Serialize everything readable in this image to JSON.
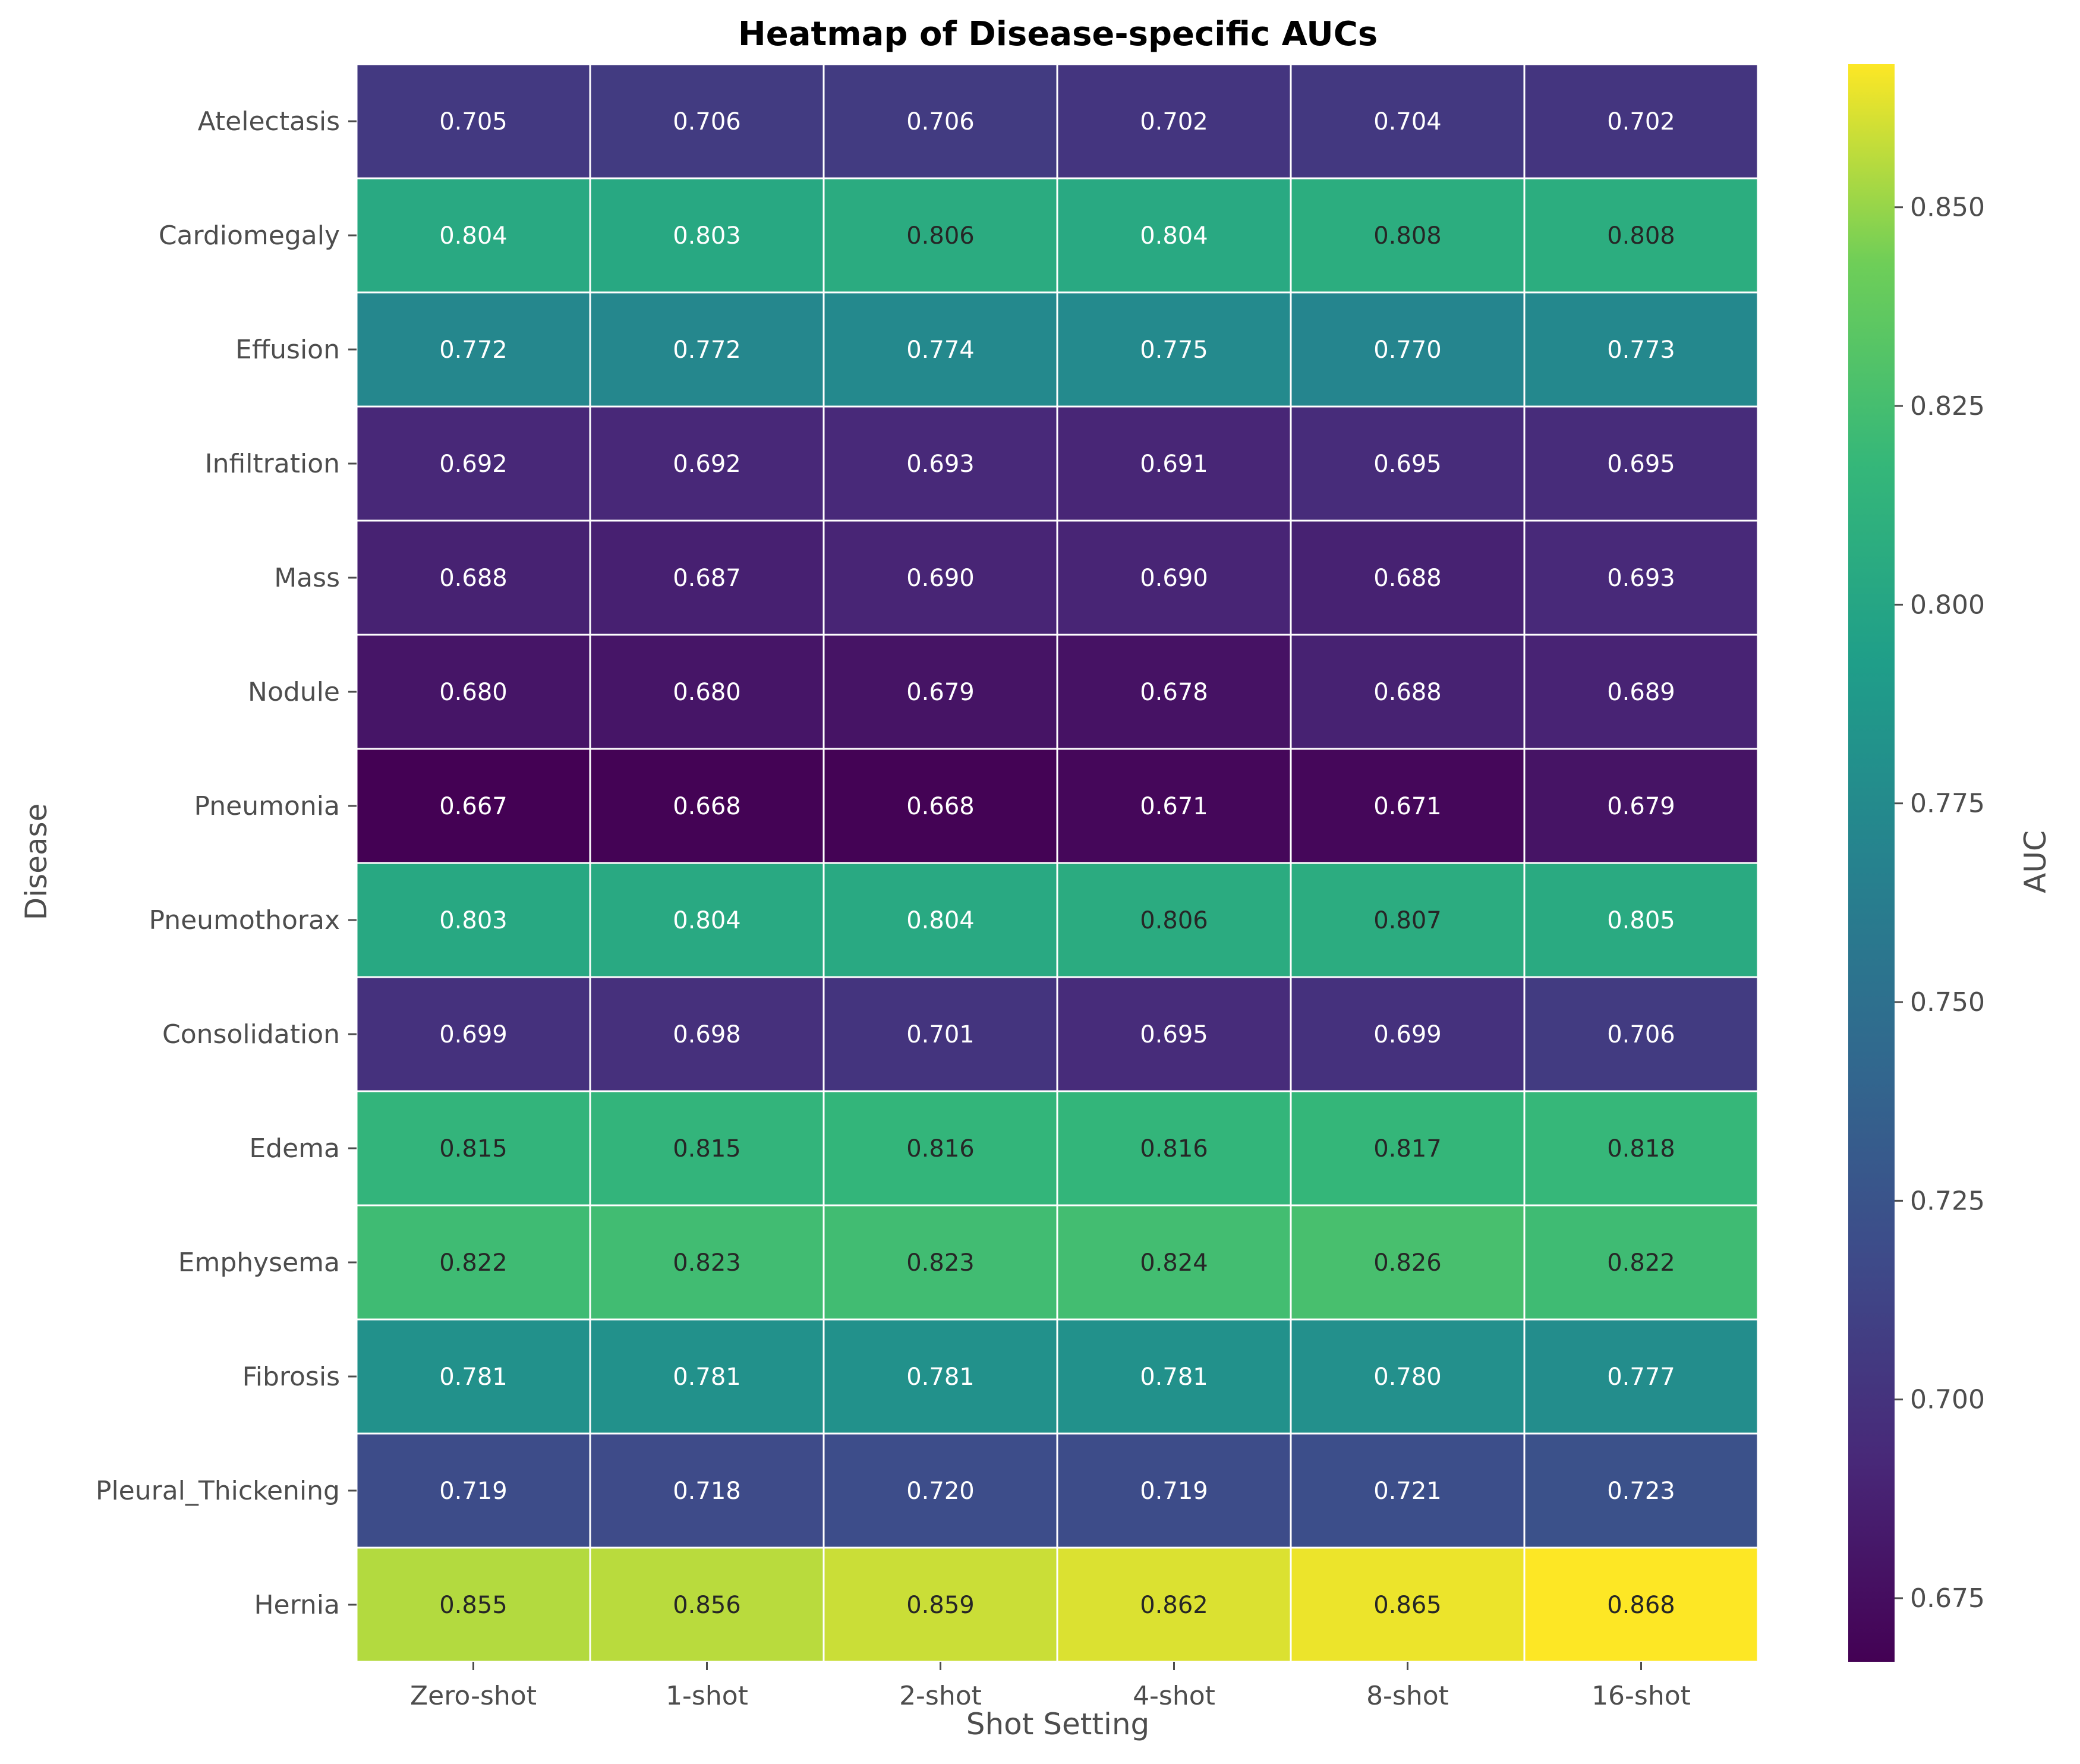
{
  "chart_data": {
    "type": "heatmap",
    "title": "Heatmap of Disease-specific AUCs",
    "xlabel": "Shot Setting",
    "ylabel": "Disease",
    "colorbar_label": "AUC",
    "colormap": "viridis",
    "color_range": [
      0.667,
      0.868
    ],
    "colorbar_ticks": [
      "0.675",
      "0.700",
      "0.725",
      "0.750",
      "0.775",
      "0.800",
      "0.825",
      "0.850"
    ],
    "columns": [
      "Zero-shot",
      "1-shot",
      "2-shot",
      "4-shot",
      "8-shot",
      "16-shot"
    ],
    "rows": [
      "Atelectasis",
      "Cardiomegaly",
      "Effusion",
      "Infiltration",
      "Mass",
      "Nodule",
      "Pneumonia",
      "Pneumothorax",
      "Consolidation",
      "Edema",
      "Emphysema",
      "Fibrosis",
      "Pleural_Thickening",
      "Hernia"
    ],
    "values": [
      [
        0.705,
        0.706,
        0.706,
        0.702,
        0.704,
        0.702
      ],
      [
        0.804,
        0.803,
        0.806,
        0.804,
        0.808,
        0.808
      ],
      [
        0.772,
        0.772,
        0.774,
        0.775,
        0.77,
        0.773
      ],
      [
        0.692,
        0.692,
        0.693,
        0.691,
        0.695,
        0.695
      ],
      [
        0.688,
        0.687,
        0.69,
        0.69,
        0.688,
        0.693
      ],
      [
        0.68,
        0.68,
        0.679,
        0.678,
        0.688,
        0.689
      ],
      [
        0.667,
        0.668,
        0.668,
        0.671,
        0.671,
        0.679
      ],
      [
        0.803,
        0.804,
        0.804,
        0.806,
        0.807,
        0.805
      ],
      [
        0.699,
        0.698,
        0.701,
        0.695,
        0.699,
        0.706
      ],
      [
        0.815,
        0.815,
        0.816,
        0.816,
        0.817,
        0.818
      ],
      [
        0.822,
        0.823,
        0.823,
        0.824,
        0.826,
        0.822
      ],
      [
        0.781,
        0.781,
        0.781,
        0.781,
        0.78,
        0.777
      ],
      [
        0.719,
        0.718,
        0.72,
        0.719,
        0.721,
        0.723
      ],
      [
        0.855,
        0.856,
        0.859,
        0.862,
        0.865,
        0.868
      ]
    ]
  }
}
